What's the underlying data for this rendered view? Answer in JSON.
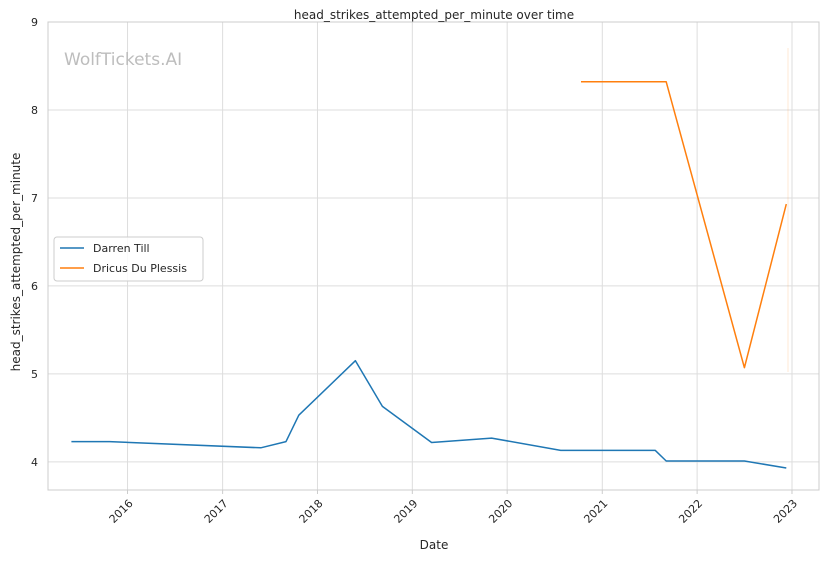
{
  "chart_data": {
    "type": "line",
    "title": "head_strikes_attempted_per_minute over time",
    "xlabel": "Date",
    "ylabel": "head_strikes_attempted_per_minute",
    "watermark": "WolfTickets.AI",
    "xlim": [
      "2015-03-01",
      "2023-04-15"
    ],
    "ylim": [
      3.68,
      9.0
    ],
    "x_ticks": [
      "2016",
      "2017",
      "2018",
      "2019",
      "2020",
      "2021",
      "2022",
      "2023"
    ],
    "y_ticks": [
      "4",
      "5",
      "6",
      "7",
      "8",
      "9"
    ],
    "grid": true,
    "legend_position": "center-left",
    "series": [
      {
        "name": "Darren Till",
        "color": "#1f77b4",
        "points": [
          [
            "2015-05-30",
            4.23
          ],
          [
            "2015-10-24",
            4.23
          ],
          [
            "2017-05-28",
            4.16
          ],
          [
            "2017-09-02",
            4.23
          ],
          [
            "2017-10-21",
            4.53
          ],
          [
            "2018-05-27",
            5.15
          ],
          [
            "2018-09-08",
            4.63
          ],
          [
            "2019-03-16",
            4.22
          ],
          [
            "2019-11-02",
            4.27
          ],
          [
            "2020-07-25",
            4.13
          ],
          [
            "2021-07-24",
            4.13
          ],
          [
            "2021-09-04",
            4.01
          ],
          [
            "2022-07-02",
            4.01
          ],
          [
            "2022-12-10",
            3.93
          ]
        ]
      },
      {
        "name": "Dricus Du Plessis",
        "color": "#ff7f0e",
        "points": [
          [
            "2020-10-11",
            8.32
          ],
          [
            "2021-03-20",
            8.32
          ],
          [
            "2021-07-10",
            8.32
          ],
          [
            "2021-09-04",
            8.32
          ],
          [
            "2022-07-02",
            5.07
          ],
          [
            "2022-12-10",
            6.93
          ]
        ]
      }
    ]
  }
}
